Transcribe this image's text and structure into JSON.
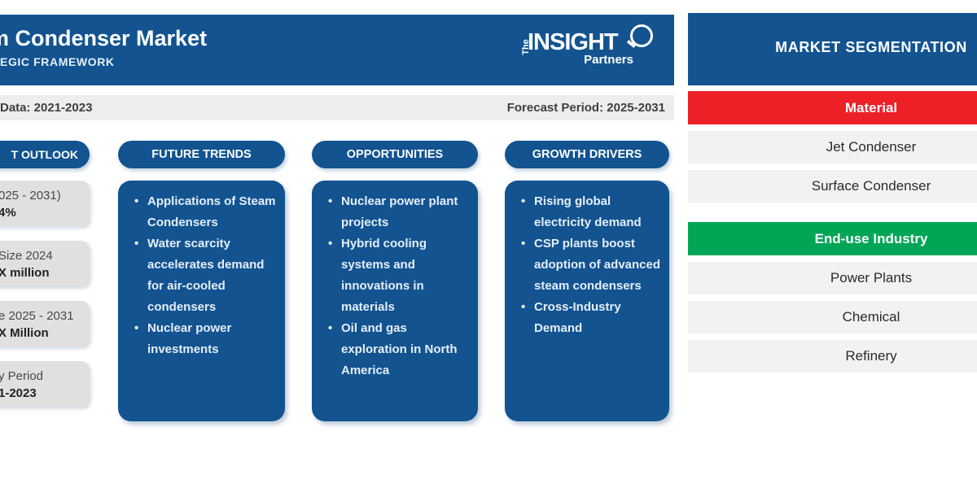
{
  "colors": {
    "brand_blue": "#125390",
    "accent_red": "#ed1f27",
    "accent_green": "#00a656",
    "header_bar_gray": "#ededed",
    "outlook_box_gray": "#e0e0e0",
    "segment_row_gray": "#f2f2f2"
  },
  "header": {
    "title_visible": "m Condenser Market",
    "subtitle_visible": "EGIC FRAMEWORK",
    "logo": {
      "the": "The",
      "insight": "INSIGHT",
      "partners": "Partners"
    }
  },
  "period_bar": {
    "historic_visible": "Data: 2021-2023",
    "forecast": "Forecast Period: 2025-2031"
  },
  "market_outlook": {
    "title_visible": "T OUTLOOK",
    "boxes": [
      {
        "line1_visible": "025 - 2031)",
        "line2_visible": "4%"
      },
      {
        "line1_visible": "Size 2024",
        "line2_visible": "X million"
      },
      {
        "line1_visible": "e 2025 - 2031",
        "line2_visible": "X Million"
      },
      {
        "line1_visible": "y Period",
        "line2_visible": "1-2023"
      }
    ]
  },
  "columns": [
    {
      "title": "FUTURE TRENDS",
      "bullets": [
        "Applications of Steam Condensers",
        "Water scarcity accelerates demand for air-cooled condensers",
        "Nuclear power investments"
      ]
    },
    {
      "title": "OPPORTUNITIES",
      "bullets": [
        "Nuclear power plant projects",
        "Hybrid cooling systems and innovations in materials",
        "Oil and gas exploration in North America"
      ]
    },
    {
      "title": "GROWTH DRIVERS",
      "bullets": [
        "Rising global electricity demand",
        "CSP plants boost adoption of advanced steam condensers",
        "Cross-Industry Demand"
      ]
    }
  ],
  "segmentation": {
    "title": "MARKET SEGMENTATION",
    "groups": [
      {
        "label": "Material",
        "color": "#ed1f27",
        "items": [
          "Jet Condenser",
          "Surface Condenser"
        ]
      },
      {
        "label": "End-use Industry",
        "color": "#00a656",
        "items": [
          "Power Plants",
          "Chemical",
          "Refinery"
        ]
      }
    ]
  }
}
